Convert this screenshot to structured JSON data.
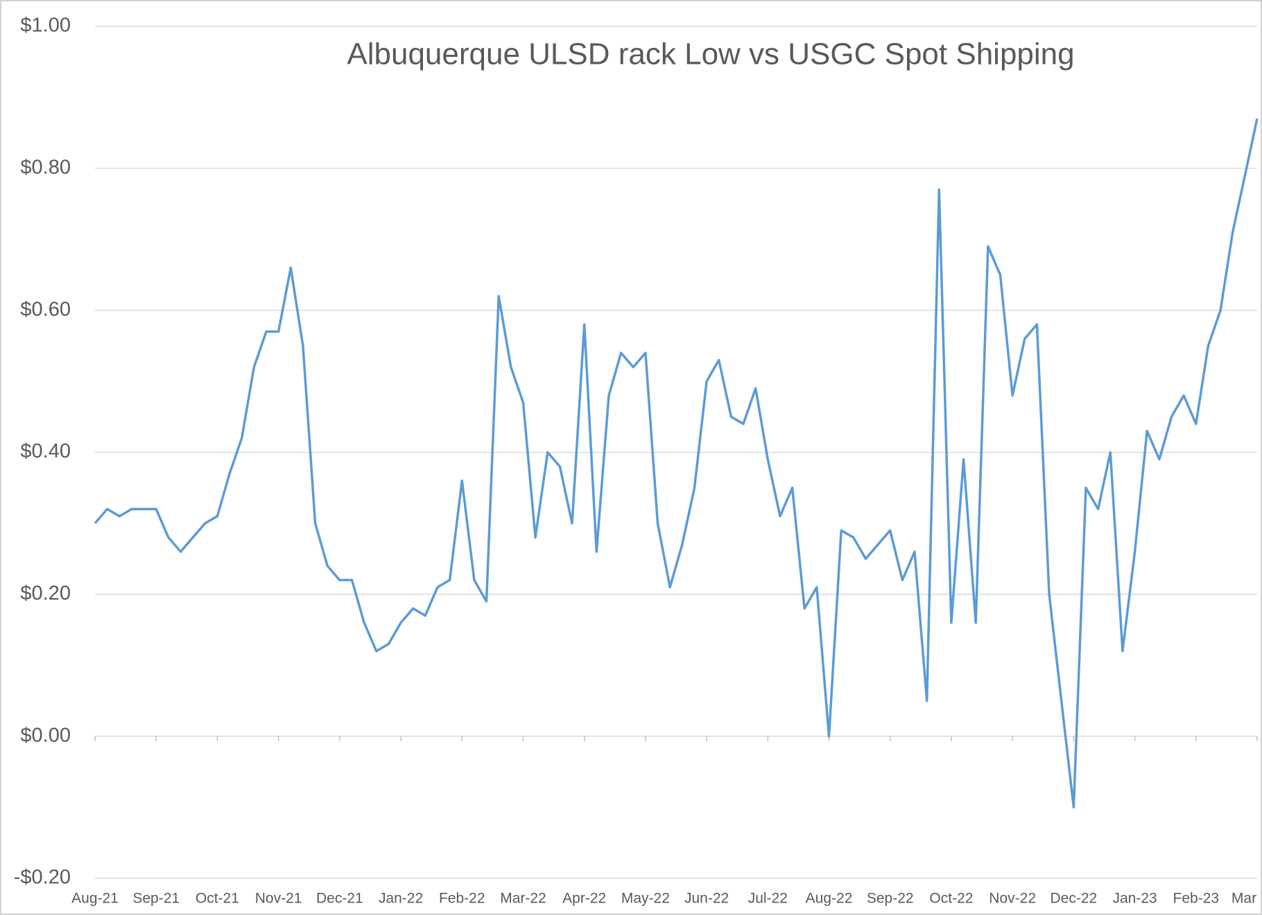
{
  "chart_data": {
    "type": "line",
    "title": "Albuquerque ULSD rack Low vs USGC Spot Shipping",
    "categories": [
      "Aug-21",
      null,
      null,
      null,
      null,
      "Sep-21",
      null,
      null,
      null,
      null,
      "Oct-21",
      null,
      null,
      null,
      null,
      "Nov-21",
      null,
      null,
      null,
      null,
      "Dec-21",
      null,
      null,
      null,
      null,
      "Jan-22",
      null,
      null,
      null,
      null,
      "Feb-22",
      null,
      null,
      null,
      null,
      "Mar-22",
      null,
      null,
      null,
      null,
      "Apr-22",
      null,
      null,
      null,
      null,
      "May-22",
      null,
      null,
      null,
      null,
      "Jun-22",
      null,
      null,
      null,
      null,
      "Jul-22",
      null,
      null,
      null,
      null,
      "Aug-22",
      null,
      null,
      null,
      null,
      "Sep-22",
      null,
      null,
      null,
      null,
      "Oct-22",
      null,
      null,
      null,
      null,
      "Nov-22",
      null,
      null,
      null,
      null,
      "Dec-22",
      null,
      null,
      null,
      null,
      "Jan-23",
      null,
      null,
      null,
      null,
      "Feb-23",
      null,
      null,
      null,
      null,
      "Mar"
    ],
    "series": [
      {
        "name": null,
        "color": "#5b9bd5",
        "values": [
          0.3,
          0.32,
          0.31,
          0.32,
          0.32,
          0.32,
          0.28,
          0.26,
          0.28,
          0.3,
          0.31,
          0.37,
          0.42,
          0.52,
          0.57,
          0.57,
          0.66,
          0.55,
          0.3,
          0.24,
          0.22,
          0.22,
          0.16,
          0.12,
          0.13,
          0.16,
          0.18,
          0.17,
          0.21,
          0.22,
          0.36,
          0.22,
          0.19,
          0.62,
          0.52,
          0.47,
          0.28,
          0.4,
          0.38,
          0.3,
          0.58,
          0.26,
          0.48,
          0.54,
          0.52,
          0.54,
          0.3,
          0.21,
          0.27,
          0.35,
          0.5,
          0.53,
          0.45,
          0.44,
          0.49,
          0.39,
          0.31,
          0.35,
          0.18,
          0.21,
          0.0,
          0.29,
          0.28,
          0.25,
          0.27,
          0.29,
          0.22,
          0.26,
          0.05,
          0.77,
          0.16,
          0.39,
          0.16,
          0.69,
          0.65,
          0.48,
          0.56,
          0.58,
          0.2,
          0.05,
          -0.1,
          0.35,
          0.32,
          0.4,
          0.12,
          0.26,
          0.43,
          0.39,
          0.45,
          0.48,
          0.44,
          0.55,
          0.6,
          0.71,
          0.79,
          0.87
        ]
      }
    ],
    "ylim": [
      -0.2,
      1.0
    ],
    "yticks": [
      {
        "value": -0.2,
        "label": "-$0.20"
      },
      {
        "value": 0,
        "label": "$0.00"
      },
      {
        "value": 0.2,
        "label": "$0.20"
      },
      {
        "value": 0.4,
        "label": "$0.40"
      },
      {
        "value": 0.6,
        "label": "$0.60"
      },
      {
        "value": 0.8,
        "label": "$0.80"
      },
      {
        "value": 1.0,
        "label": "$1.00"
      }
    ],
    "grid": true
  }
}
